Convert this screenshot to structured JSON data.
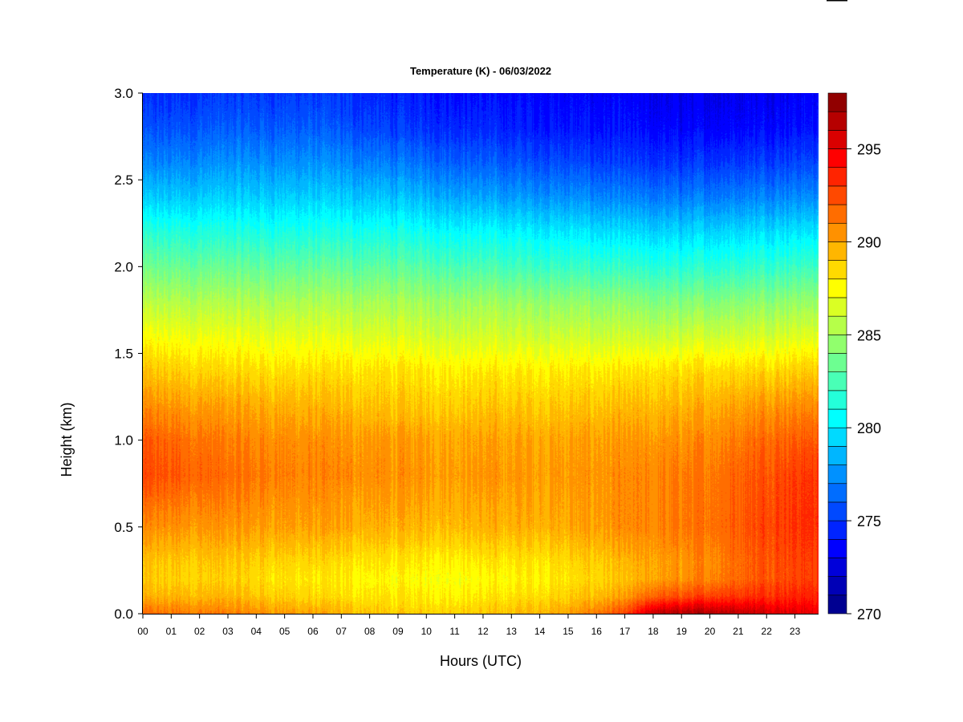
{
  "chart_data": {
    "type": "heatmap",
    "title": "Temperature (K) - 06/03/2022",
    "xlabel": "Hours (UTC)",
    "ylabel": "Height (km)",
    "x_ticks": [
      "00",
      "01",
      "02",
      "03",
      "04",
      "05",
      "06",
      "07",
      "08",
      "09",
      "10",
      "11",
      "12",
      "13",
      "14",
      "15",
      "16",
      "17",
      "18",
      "19",
      "20",
      "21",
      "22",
      "23"
    ],
    "y_ticks": [
      "0.0",
      "0.5",
      "1.0",
      "1.5",
      "2.0",
      "2.5",
      "3.0"
    ],
    "xlim": [
      0,
      24
    ],
    "ylim": [
      0,
      3.0
    ],
    "colorbar": {
      "label_ticks": [
        "270",
        "275",
        "280",
        "285",
        "290",
        "295"
      ],
      "range": [
        270,
        298
      ],
      "levels": 28
    },
    "colormap": [
      "#00007F",
      "#0000FF",
      "#007FFF",
      "#00FFFF",
      "#7FFF7F",
      "#FFFF00",
      "#FF7F00",
      "#FF0000",
      "#7F0000"
    ],
    "profile_heights_km": [
      0.0,
      0.1,
      0.2,
      0.3,
      0.5,
      0.8,
      1.0,
      1.2,
      1.4,
      1.6,
      1.8,
      2.0,
      2.2,
      2.4,
      2.6,
      2.8,
      3.0
    ],
    "profiles": [
      {
        "hour": 0,
        "temps": [
          291.5,
          289.5,
          288.8,
          289.0,
          290.5,
          292.5,
          292.0,
          290.5,
          289.0,
          287.3,
          285.5,
          283.5,
          281.5,
          279.0,
          277.0,
          275.5,
          274.5
        ]
      },
      {
        "hour": 3,
        "temps": [
          291.0,
          289.5,
          288.7,
          289.0,
          290.3,
          291.5,
          291.0,
          290.0,
          288.5,
          287.0,
          285.3,
          283.3,
          281.3,
          279.2,
          277.5,
          276.0,
          275.0
        ]
      },
      {
        "hour": 6,
        "temps": [
          290.0,
          288.5,
          288.0,
          288.5,
          290.0,
          290.8,
          290.5,
          289.5,
          288.3,
          286.8,
          285.2,
          283.2,
          281.2,
          279.2,
          277.5,
          276.0,
          275.0
        ]
      },
      {
        "hour": 9,
        "temps": [
          288.8,
          288.0,
          287.5,
          288.0,
          289.5,
          290.5,
          290.2,
          289.0,
          288.2,
          286.5,
          285.0,
          283.0,
          281.0,
          278.8,
          276.8,
          275.0,
          274.3
        ]
      },
      {
        "hour": 12,
        "temps": [
          289.0,
          288.0,
          287.5,
          288.0,
          289.5,
          290.3,
          290.0,
          289.0,
          288.0,
          286.3,
          284.8,
          282.5,
          280.5,
          278.0,
          276.0,
          274.5,
          273.8
        ]
      },
      {
        "hour": 15,
        "temps": [
          290.0,
          288.8,
          288.2,
          288.5,
          289.8,
          290.3,
          290.0,
          289.0,
          288.0,
          286.2,
          284.5,
          282.0,
          280.0,
          277.5,
          275.5,
          274.0,
          273.5
        ]
      },
      {
        "hour": 17,
        "temps": [
          292.5,
          290.0,
          289.0,
          289.3,
          290.5,
          290.5,
          290.2,
          289.2,
          288.0,
          286.0,
          284.3,
          281.8,
          279.5,
          277.0,
          275.0,
          273.8,
          273.3
        ]
      },
      {
        "hour": 18,
        "temps": [
          296.5,
          292.0,
          290.0,
          290.0,
          290.8,
          290.8,
          290.3,
          289.3,
          288.2,
          286.0,
          284.0,
          281.5,
          279.3,
          276.8,
          274.8,
          273.5,
          273.0
        ]
      },
      {
        "hour": 20,
        "temps": [
          297.0,
          293.0,
          291.0,
          290.8,
          291.5,
          291.3,
          290.8,
          289.8,
          288.5,
          286.3,
          284.2,
          281.7,
          279.5,
          277.0,
          275.0,
          273.5,
          273.0
        ]
      },
      {
        "hour": 22,
        "temps": [
          296.0,
          293.5,
          292.5,
          292.5,
          292.8,
          292.5,
          291.8,
          290.5,
          288.7,
          286.5,
          284.5,
          282.0,
          279.8,
          277.3,
          275.3,
          273.8,
          273.3
        ]
      },
      {
        "hour": 24,
        "temps": [
          295.0,
          293.8,
          293.0,
          293.0,
          293.5,
          293.3,
          292.3,
          290.8,
          289.0,
          286.8,
          284.8,
          282.3,
          280.0,
          277.5,
          275.5,
          274.0,
          273.5
        ]
      }
    ],
    "grid": false,
    "legend": "colorbar-right"
  }
}
